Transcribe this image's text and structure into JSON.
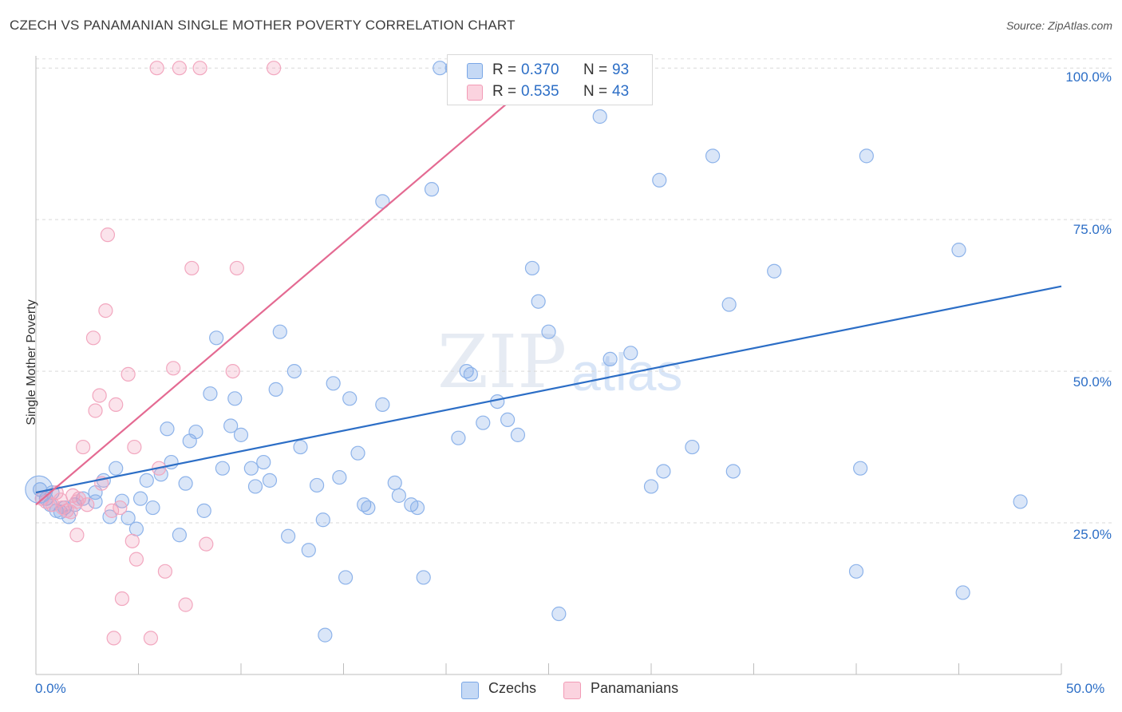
{
  "title": "CZECH VS PANAMANIAN SINGLE MOTHER POVERTY CORRELATION CHART",
  "source": "Source: ZipAtlas.com",
  "watermark": {
    "zip": "ZIP",
    "atlas": "atlas"
  },
  "legend": {
    "rows": [
      {
        "r_label": "R = ",
        "r_value": "0.370",
        "n_label": "N = ",
        "n_value": "93",
        "color": "#7aa7e6"
      },
      {
        "r_label": "R = ",
        "r_value": "0.535",
        "n_label": "N = ",
        "n_value": "43",
        "color": "#f29bb6"
      }
    ]
  },
  "bottom_legend": [
    {
      "label": "Czechs",
      "color": "#b9d0f3"
    },
    {
      "label": "Panamanians",
      "color": "#f8c3d3"
    }
  ],
  "colors": {
    "blue": "#7aa7e6",
    "blue_line": "#2c6ec6",
    "pink": "#f29bb6",
    "pink_line": "#e46a92",
    "tick_text": "#2c6ec6"
  },
  "chart_data": {
    "type": "scatter",
    "title": "CZECH VS PANAMANIAN SINGLE MOTHER POVERTY CORRELATION CHART",
    "xlabel": "",
    "ylabel": "Single Mother Poverty",
    "xlim": [
      0,
      50
    ],
    "ylim": [
      0,
      102
    ],
    "x_tick_labels": [
      "0.0%",
      "50.0%"
    ],
    "y_tick_labels": [
      "25.0%",
      "50.0%",
      "75.0%",
      "100.0%"
    ],
    "y_ticks": [
      25,
      50,
      75,
      100
    ],
    "grid": true,
    "series": [
      {
        "name": "Czechs",
        "color": "#7aa7e6",
        "trend": {
          "x": [
            0,
            50
          ],
          "y": [
            30.0,
            64.0
          ]
        },
        "points": [
          [
            0.2,
            30.5
          ],
          [
            0.5,
            29.0
          ],
          [
            0.7,
            28.0
          ],
          [
            0.8,
            30.0
          ],
          [
            1.0,
            27.0
          ],
          [
            1.2,
            26.8
          ],
          [
            1.4,
            27.5
          ],
          [
            1.6,
            26.0
          ],
          [
            1.9,
            28.0
          ],
          [
            2.3,
            29.0
          ],
          [
            2.9,
            28.5
          ],
          [
            2.9,
            30.0
          ],
          [
            3.3,
            32.0
          ],
          [
            3.6,
            26.0
          ],
          [
            3.9,
            34.0
          ],
          [
            4.2,
            28.6
          ],
          [
            4.5,
            25.8
          ],
          [
            4.9,
            24.0
          ],
          [
            5.1,
            29.0
          ],
          [
            5.4,
            32.0
          ],
          [
            5.7,
            27.5
          ],
          [
            6.1,
            33.0
          ],
          [
            6.4,
            40.5
          ],
          [
            6.6,
            35.0
          ],
          [
            7.0,
            23.0
          ],
          [
            7.3,
            31.5
          ],
          [
            7.5,
            38.5
          ],
          [
            7.8,
            40.0
          ],
          [
            8.2,
            27.0
          ],
          [
            8.5,
            46.3
          ],
          [
            8.8,
            55.5
          ],
          [
            9.1,
            34.0
          ],
          [
            9.5,
            41.0
          ],
          [
            9.7,
            45.5
          ],
          [
            10.0,
            39.5
          ],
          [
            10.5,
            34.0
          ],
          [
            10.7,
            31.0
          ],
          [
            11.1,
            35.0
          ],
          [
            11.4,
            32.0
          ],
          [
            11.7,
            47.0
          ],
          [
            11.9,
            56.5
          ],
          [
            12.3,
            22.8
          ],
          [
            12.6,
            50.0
          ],
          [
            12.9,
            37.5
          ],
          [
            13.3,
            20.5
          ],
          [
            13.7,
            31.2
          ],
          [
            14.0,
            25.5
          ],
          [
            14.1,
            6.5
          ],
          [
            14.5,
            48.0
          ],
          [
            14.8,
            32.5
          ],
          [
            15.1,
            16.0
          ],
          [
            15.3,
            45.5
          ],
          [
            15.7,
            36.5
          ],
          [
            16.0,
            28.0
          ],
          [
            16.2,
            27.5
          ],
          [
            16.9,
            78.0
          ],
          [
            16.9,
            44.5
          ],
          [
            17.5,
            31.6
          ],
          [
            17.7,
            29.5
          ],
          [
            18.3,
            28.0
          ],
          [
            18.6,
            27.5
          ],
          [
            18.9,
            16.0
          ],
          [
            19.3,
            80.0
          ],
          [
            19.7,
            100.0
          ],
          [
            20.3,
            100.0
          ],
          [
            20.6,
            39.0
          ],
          [
            21.0,
            50.0
          ],
          [
            21.2,
            49.5
          ],
          [
            21.8,
            41.5
          ],
          [
            22.5,
            45.0
          ],
          [
            23.0,
            42.0
          ],
          [
            23.5,
            39.5
          ],
          [
            24.2,
            67.0
          ],
          [
            24.5,
            61.5
          ],
          [
            25.0,
            56.5
          ],
          [
            25.5,
            10.0
          ],
          [
            27.5,
            92.0
          ],
          [
            28.0,
            52.0
          ],
          [
            29.0,
            53.0
          ],
          [
            30.0,
            31.0
          ],
          [
            30.4,
            81.5
          ],
          [
            30.6,
            33.5
          ],
          [
            32.0,
            37.5
          ],
          [
            33.0,
            85.5
          ],
          [
            33.8,
            61.0
          ],
          [
            34.0,
            33.5
          ],
          [
            36.0,
            66.5
          ],
          [
            40.0,
            17.0
          ],
          [
            40.2,
            34.0
          ],
          [
            40.5,
            85.5
          ],
          [
            45.0,
            70.0
          ],
          [
            45.2,
            13.5
          ],
          [
            48.0,
            28.5
          ]
        ]
      },
      {
        "name": "Panamanians",
        "color": "#f29bb6",
        "trend": {
          "x": [
            0,
            25
          ],
          "y": [
            28.0,
            100.0
          ]
        },
        "points": [
          [
            0.3,
            29.0
          ],
          [
            0.5,
            28.5
          ],
          [
            0.8,
            28.0
          ],
          [
            1.0,
            30.0
          ],
          [
            1.2,
            28.8
          ],
          [
            1.5,
            27.0
          ],
          [
            1.7,
            26.8
          ],
          [
            1.8,
            29.5
          ],
          [
            2.0,
            23.0
          ],
          [
            2.1,
            29.0
          ],
          [
            2.3,
            37.5
          ],
          [
            2.5,
            28.0
          ],
          [
            2.8,
            55.5
          ],
          [
            2.9,
            43.5
          ],
          [
            3.1,
            46.0
          ],
          [
            3.2,
            31.5
          ],
          [
            3.4,
            60.0
          ],
          [
            3.5,
            72.5
          ],
          [
            3.7,
            27.0
          ],
          [
            3.8,
            6.0
          ],
          [
            3.9,
            44.5
          ],
          [
            4.1,
            27.5
          ],
          [
            4.2,
            12.5
          ],
          [
            4.5,
            49.5
          ],
          [
            4.7,
            22.0
          ],
          [
            4.8,
            37.5
          ],
          [
            4.9,
            19.0
          ],
          [
            5.6,
            6.0
          ],
          [
            5.9,
            100.0
          ],
          [
            6.0,
            34.0
          ],
          [
            6.3,
            17.0
          ],
          [
            6.7,
            50.5
          ],
          [
            7.0,
            100.0
          ],
          [
            7.3,
            11.5
          ],
          [
            7.6,
            67.0
          ],
          [
            8.0,
            100.0
          ],
          [
            8.3,
            21.5
          ],
          [
            9.6,
            50.0
          ],
          [
            9.8,
            67.0
          ],
          [
            11.6,
            100.0
          ],
          [
            26.0,
            100.0
          ],
          [
            2.0,
            28.5
          ],
          [
            1.3,
            27.5
          ]
        ]
      }
    ]
  }
}
